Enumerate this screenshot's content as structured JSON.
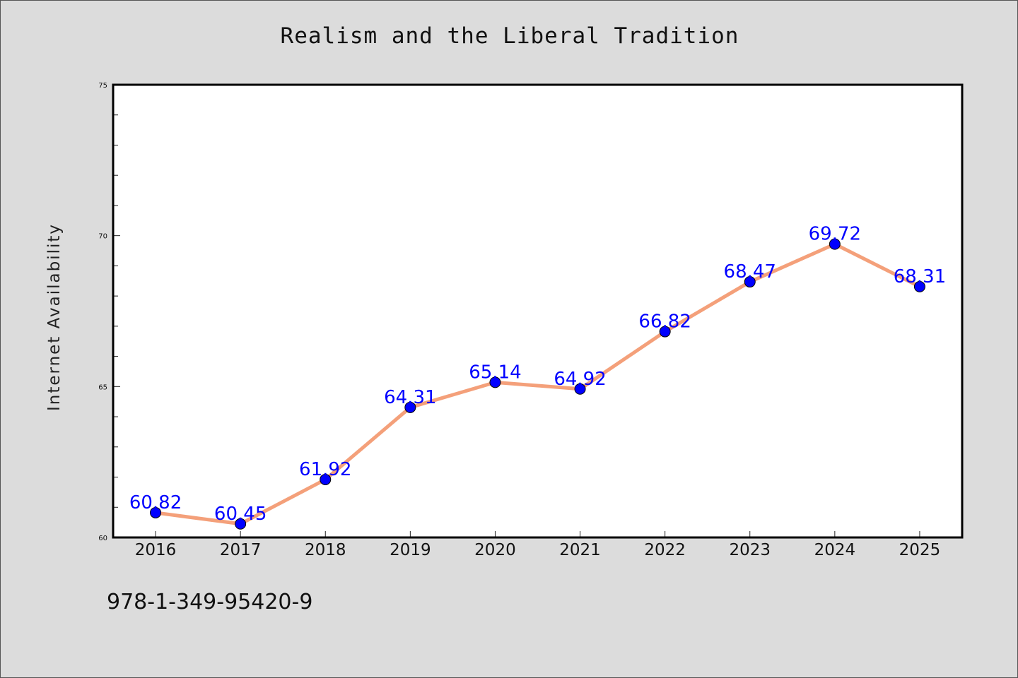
{
  "chart_data": {
    "type": "line",
    "title": "Realism and the Liberal Tradition",
    "xlabel": "",
    "ylabel": "Internet Availability",
    "categories": [
      "2016",
      "2017",
      "2018",
      "2019",
      "2020",
      "2021",
      "2022",
      "2023",
      "2024",
      "2025"
    ],
    "series": [
      {
        "values": [
          60.82,
          60.45,
          61.92,
          64.31,
          65.14,
          64.92,
          66.82,
          68.47,
          69.72,
          68.31
        ],
        "data_labels": [
          "60.82",
          "60.45",
          "61.92",
          "64.31",
          "65.14",
          "64.92",
          "66.82",
          "68.47",
          "69.72",
          "68.31"
        ]
      }
    ],
    "ylim": [
      60,
      75
    ],
    "yticks": [
      "60",
      "65",
      "70",
      "75"
    ],
    "grid": false,
    "legend": "none",
    "colors": {
      "line": "#f4a07a",
      "marker": "#0000ff",
      "data_label": "#0000ff",
      "background": "#dcdcdc",
      "plot_background": "#ffffff"
    }
  },
  "footer": {
    "isbn": "978-1-349-95420-9"
  }
}
